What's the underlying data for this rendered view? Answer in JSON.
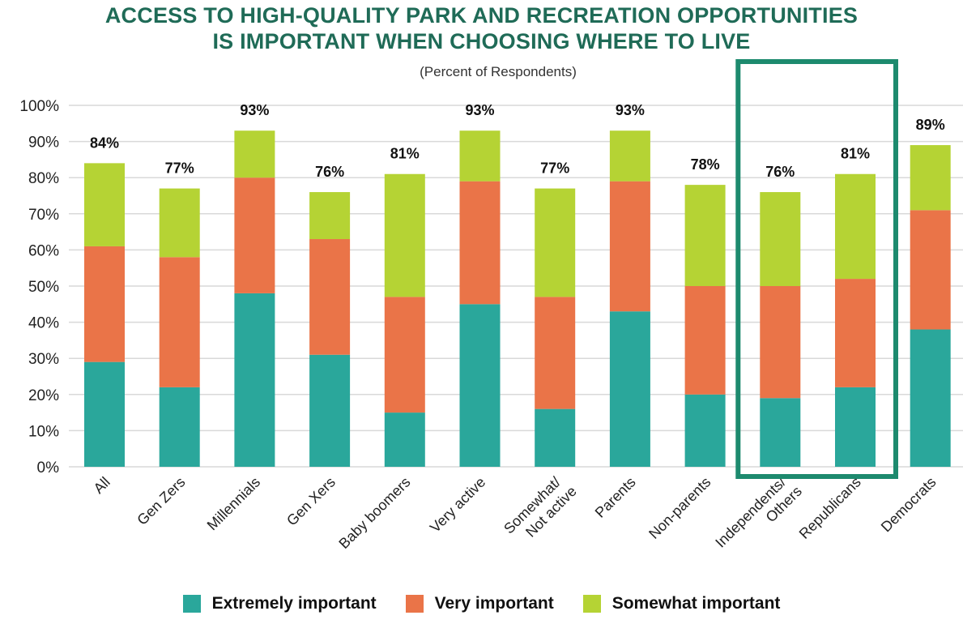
{
  "title_line1": "ACCESS TO HIGH-QUALITY PARK AND RECREATION OPPORTUNITIES",
  "title_line2": "IS IMPORTANT WHEN CHOOSING WHERE TO LIVE",
  "subtitle": "(Percent of Respondents)",
  "colors": {
    "extremely": "#2aa79b",
    "very": "#ea7448",
    "somewhat": "#b5d334",
    "title": "#1f6b57",
    "highlight": "#1d8a6e",
    "grid": "#d9d9d9"
  },
  "chart_data": {
    "type": "bar",
    "stacked": true,
    "categories": [
      "All",
      "Gen Zers",
      "Millennials",
      "Gen Xers",
      "Baby boomers",
      "Very active",
      "Somewhat/ Not active",
      "Parents",
      "Non-parents",
      "Independents/ Others",
      "Republicans",
      "Democrats"
    ],
    "series": [
      {
        "name": "Extremely important",
        "values": [
          29,
          22,
          48,
          31,
          15,
          45,
          16,
          43,
          20,
          19,
          22,
          38
        ]
      },
      {
        "name": "Very important",
        "values": [
          32,
          36,
          32,
          32,
          32,
          34,
          31,
          36,
          30,
          31,
          30,
          33
        ]
      },
      {
        "name": "Somewhat important",
        "values": [
          23,
          19,
          13,
          13,
          34,
          14,
          30,
          14,
          28,
          26,
          29,
          18
        ]
      }
    ],
    "totals": [
      "84%",
      "77%",
      "93%",
      "76%",
      "81%",
      "93%",
      "77%",
      "93%",
      "78%",
      "76%",
      "81%",
      "89%"
    ],
    "ylim": [
      0,
      100
    ],
    "yticks": [
      "0%",
      "10%",
      "20%",
      "30%",
      "40%",
      "50%",
      "60%",
      "70%",
      "80%",
      "90%",
      "100%"
    ],
    "grid": true,
    "legend_position": "bottom",
    "highlighted_categories": [
      "Independents/ Others",
      "Republicans"
    ]
  }
}
